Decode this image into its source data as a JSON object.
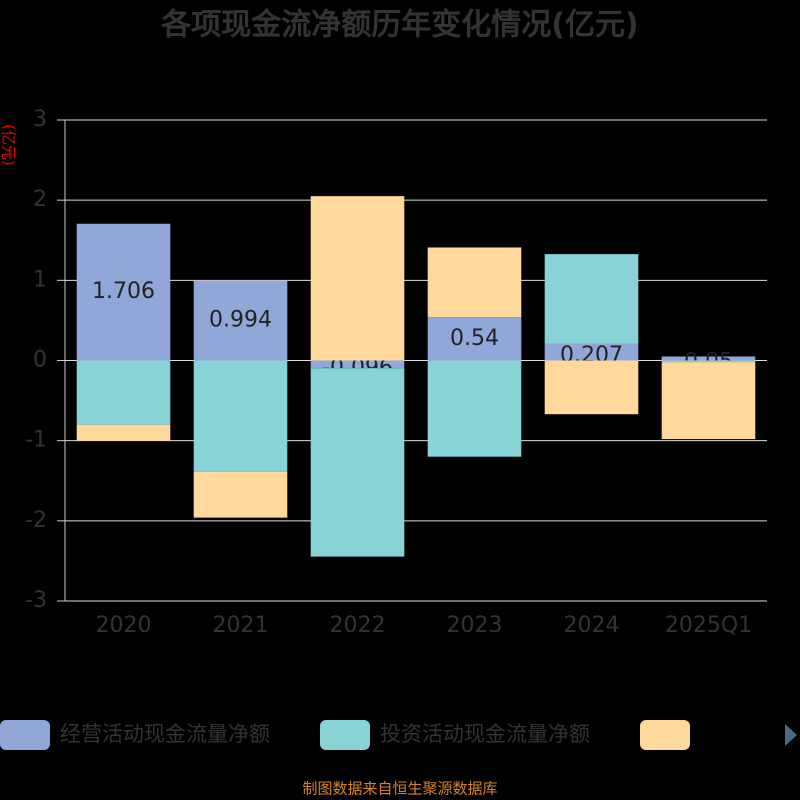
{
  "chart_data": {
    "type": "stacked_bar",
    "title": "各项现金流净额历年变化情况(亿元)",
    "y_label": "(亿元)",
    "source": "制图数据来自恒生聚源数据库",
    "categories": [
      "2020",
      "2021",
      "2022",
      "2023",
      "2024",
      "2025Q1"
    ],
    "series": [
      {
        "name": "经营活动现金流量净额",
        "color": "#91a7d9",
        "values": [
          1.706,
          0.994,
          -0.096,
          0.54,
          0.207,
          0.05
        ],
        "show_labels": true
      },
      {
        "name": "投资活动现金流量净额",
        "color": "#87d3d6",
        "values": [
          -0.8,
          -1.39,
          -2.35,
          -1.2,
          1.12,
          -0.02
        ]
      },
      {
        "color": "#ffd89b",
        "values": [
          -0.2,
          -0.57,
          2.05,
          0.87,
          -0.67,
          -0.96
        ]
      }
    ],
    "ylim": [
      -3,
      3
    ],
    "yticks": [
      -3,
      -2,
      -1,
      0,
      1,
      2,
      3
    ],
    "grid": true
  }
}
